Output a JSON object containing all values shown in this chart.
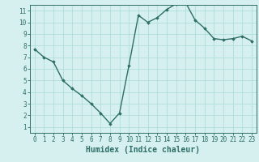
{
  "x": [
    0,
    1,
    2,
    3,
    4,
    5,
    6,
    7,
    8,
    9,
    10,
    11,
    12,
    13,
    14,
    15,
    16,
    17,
    18,
    19,
    20,
    21,
    22,
    23
  ],
  "y": [
    7.7,
    7.0,
    6.6,
    5.0,
    4.3,
    3.7,
    3.0,
    2.2,
    1.3,
    2.2,
    6.3,
    10.6,
    10.0,
    10.4,
    11.1,
    11.6,
    11.7,
    10.2,
    9.5,
    8.6,
    8.5,
    8.6,
    8.8,
    8.4
  ],
  "line_color": "#2d6e65",
  "marker": "D",
  "markersize": 1.8,
  "linewidth": 1.0,
  "background_color": "#d6f0ef",
  "grid_color": "#b0ddd9",
  "xlabel": "Humidex (Indice chaleur)",
  "xlabel_fontsize": 7,
  "xlim": [
    -0.5,
    23.5
  ],
  "ylim": [
    0.5,
    11.5
  ],
  "yticks": [
    1,
    2,
    3,
    4,
    5,
    6,
    7,
    8,
    9,
    10,
    11
  ],
  "xticks": [
    0,
    1,
    2,
    3,
    4,
    5,
    6,
    7,
    8,
    9,
    10,
    11,
    12,
    13,
    14,
    15,
    16,
    17,
    18,
    19,
    20,
    21,
    22,
    23
  ],
  "tick_color": "#2d6e65",
  "tick_fontsize": 5.5,
  "axis_color": "#2d6e65"
}
